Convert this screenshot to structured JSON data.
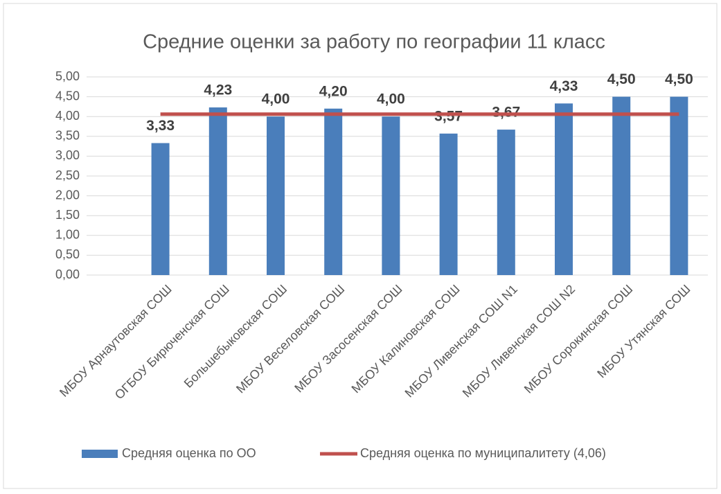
{
  "chart_data": {
    "type": "bar",
    "title": "Средние оценки за работу по географии 11 класс",
    "categories": [
      "МБОУ Арнаутовская СОШ",
      "ОГБОУ Бирюченская СОШ",
      "Большебыковская СОШ",
      "МБОУ Веселовская СОШ",
      "МБОУ Засосенская СОШ",
      "МБОУ Калиновская СОШ",
      "МБОУ Ливенская СОШ N1",
      "МБОУ Ливенская СОШ N2",
      "МБОУ Сорокинская СОШ",
      "МБОУ Утянская СОШ"
    ],
    "series": [
      {
        "name": "Средняя оценка по ОО",
        "type": "bar",
        "color": "#4a7ebb",
        "values": [
          3.33,
          4.23,
          4.0,
          4.2,
          4.0,
          3.57,
          3.67,
          4.33,
          4.5,
          4.5
        ],
        "value_labels": [
          "3,33",
          "4,23",
          "4,00",
          "4,20",
          "4,00",
          "3,57",
          "3,67",
          "4,33",
          "4,50",
          "4,50"
        ]
      },
      {
        "name": "Средняя оценка по муниципалитету (4,06)",
        "type": "line",
        "color": "#c0504d",
        "values": [
          4.06,
          4.06,
          4.06,
          4.06,
          4.06,
          4.06,
          4.06,
          4.06,
          4.06,
          4.06
        ]
      }
    ],
    "ylim": [
      0,
      5
    ],
    "yticks": [
      {
        "value": 0,
        "label": "0,00"
      },
      {
        "value": 0.5,
        "label": "0,50"
      },
      {
        "value": 1,
        "label": "1,00"
      },
      {
        "value": 1.5,
        "label": "1,50"
      },
      {
        "value": 2,
        "label": "2,00"
      },
      {
        "value": 2.5,
        "label": "2,50"
      },
      {
        "value": 3,
        "label": "3,00"
      },
      {
        "value": 3.5,
        "label": "3,50"
      },
      {
        "value": 4,
        "label": "4,00"
      },
      {
        "value": 4.5,
        "label": "4,50"
      },
      {
        "value": 5,
        "label": "5,00"
      }
    ],
    "grid": true,
    "legend": "bottom"
  }
}
